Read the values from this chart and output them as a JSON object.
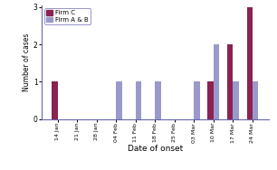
{
  "dates": [
    "14 Jan",
    "21 Jan",
    "28 Jan",
    "04 Feb",
    "11 Feb",
    "18 Feb",
    "25 Feb",
    "03 Mar",
    "10 Mar",
    "17 Mar",
    "24 Mar"
  ],
  "firm_c": [
    1,
    0,
    0,
    0,
    0,
    0,
    0,
    0,
    1,
    2,
    3
  ],
  "firm_ab": [
    0,
    0,
    0,
    1,
    1,
    1,
    0,
    1,
    2,
    1,
    1
  ],
  "color_c": "#8B2252",
  "color_ab": "#9999CC",
  "ylabel": "Number of cases",
  "xlabel": "Date of onset",
  "ylim": [
    0,
    3
  ],
  "yticks": [
    0,
    1,
    2,
    3
  ],
  "legend_c": "Firm C",
  "legend_ab": "Firm A & B",
  "bar_width": 0.3,
  "spine_color": "#6666AA",
  "bg_color": "#FFFFFF"
}
